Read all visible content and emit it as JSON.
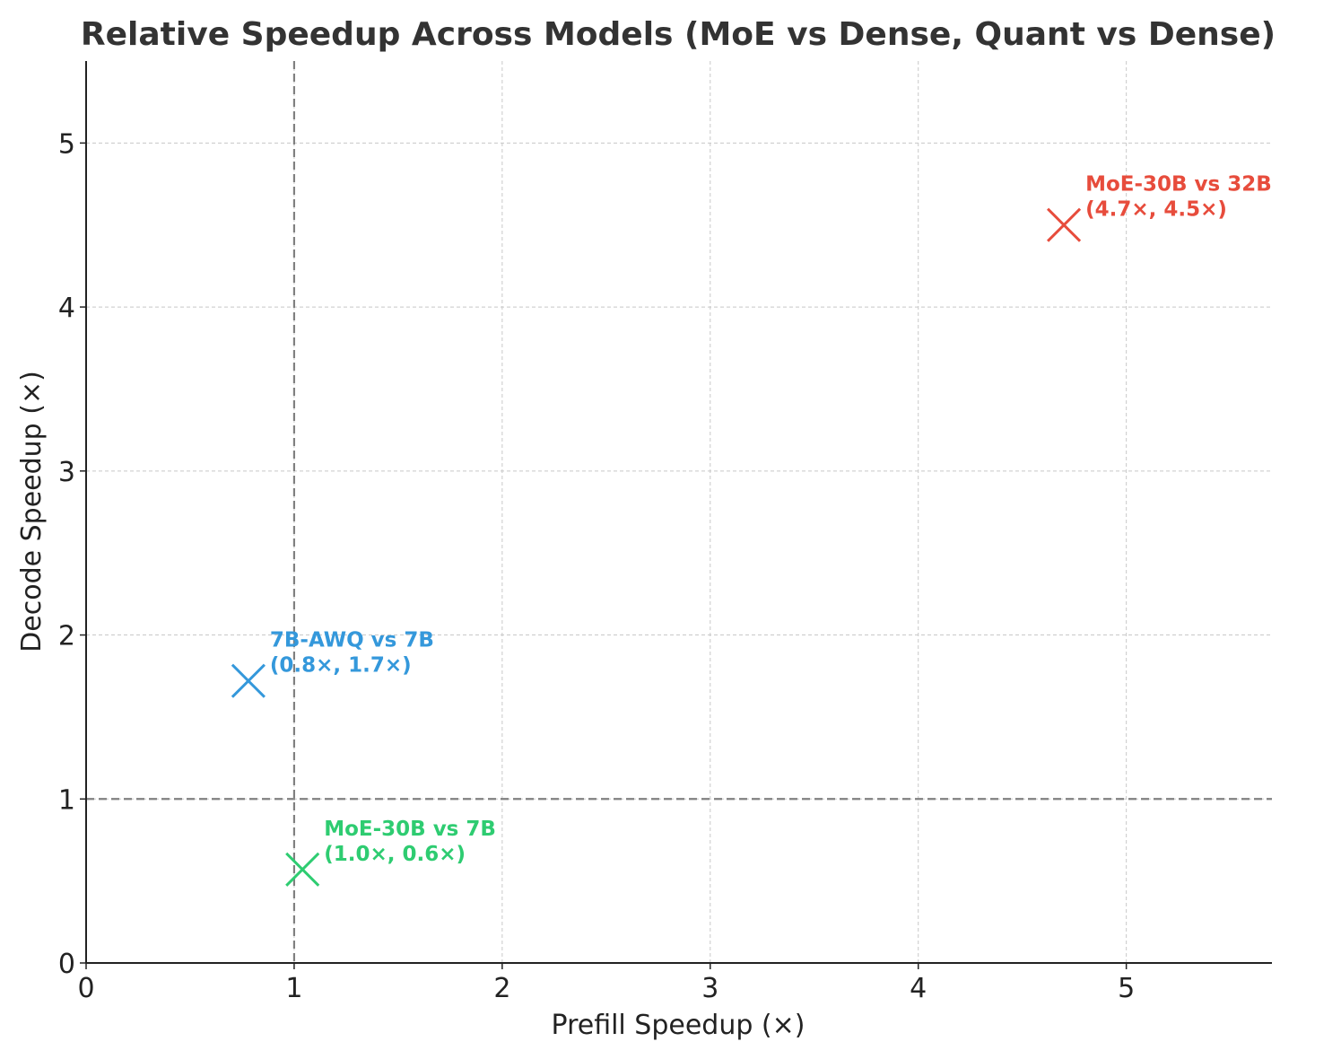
{
  "chart_data": {
    "type": "scatter",
    "title": "Relative Speedup Across Models (MoE vs Dense, Quant vs Dense)",
    "xlabel": "Prefill Speedup (×)",
    "ylabel": "Decode Speedup (×)",
    "xlim": [
      0,
      5.7
    ],
    "ylim": [
      0,
      5.5
    ],
    "xticks": [
      "0",
      "1",
      "2",
      "3",
      "4",
      "5"
    ],
    "yticks": [
      "0",
      "1",
      "2",
      "3",
      "4",
      "5"
    ],
    "grid": true,
    "reference_lines": {
      "x": 1,
      "y": 1
    },
    "marker": "x",
    "points": [
      {
        "label": "MoE-30B vs 32B",
        "value_text": "(4.7×, 4.5×)",
        "x": 4.7,
        "y": 4.5,
        "color": "#e74c3c"
      },
      {
        "label": "7B-AWQ vs 7B",
        "value_text": "(0.8×, 1.7×)",
        "x": 0.78,
        "y": 1.72,
        "color": "#3498db"
      },
      {
        "label": "MoE-30B vs 7B",
        "value_text": "(1.0×, 0.6×)",
        "x": 1.04,
        "y": 0.57,
        "color": "#2ecc71"
      }
    ]
  }
}
